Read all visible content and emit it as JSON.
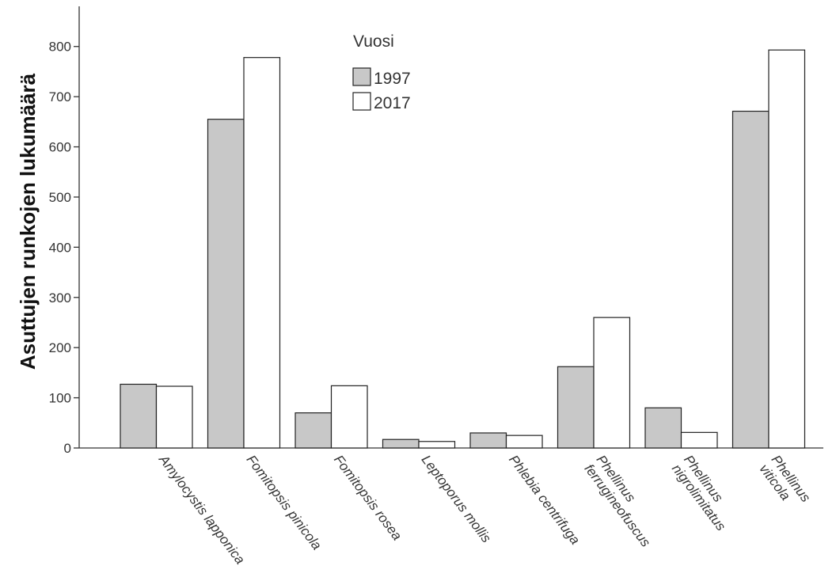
{
  "chart_data": {
    "type": "bar",
    "ylabel": "Asuttujen runkojen lukumäärä",
    "ylim": [
      0,
      880
    ],
    "yticks": [
      0,
      100,
      200,
      300,
      400,
      500,
      600,
      700,
      800
    ],
    "grid": false,
    "legend": {
      "title": "Vuosi",
      "placement": "top-center",
      "entries": [
        "1997",
        "2017"
      ]
    },
    "categories": [
      [
        "Amylocystis lapponica"
      ],
      [
        "Fomitopsis pinicola"
      ],
      [
        "Fomitopsis rosea"
      ],
      [
        "Leptoporus mollis"
      ],
      [
        "Phlebia centrifuga"
      ],
      [
        "Phellinus",
        "ferrugineofuscus"
      ],
      [
        "Phellinus",
        "nigrolimitatus"
      ],
      [
        "Phellinus",
        "viticola"
      ]
    ],
    "series": [
      {
        "name": "1997",
        "color": "#c8c8c8",
        "values": [
          127,
          655,
          70,
          17,
          30,
          162,
          80,
          671
        ]
      },
      {
        "name": "2017",
        "color": "#ffffff",
        "values": [
          123,
          778,
          124,
          13,
          25,
          260,
          31,
          793
        ]
      }
    ]
  }
}
